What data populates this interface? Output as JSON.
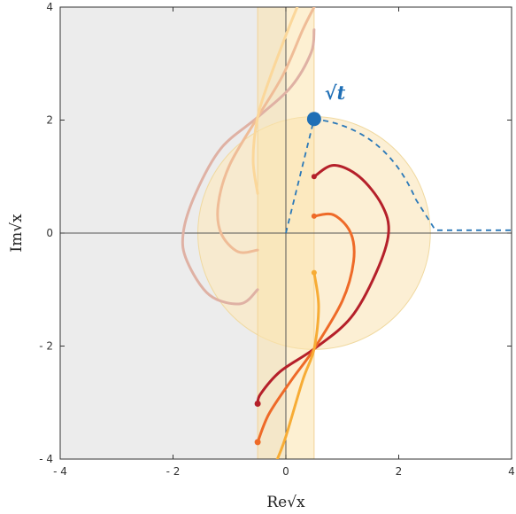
{
  "chart_data": {
    "type": "line",
    "xlabel": "Re√x",
    "ylabel": "Im√x",
    "xlim": [
      -4,
      4
    ],
    "ylim": [
      -4,
      4
    ],
    "x_ticks": [
      {
        "value": -4,
        "label": "- 4"
      },
      {
        "value": -2,
        "label": "- 2"
      },
      {
        "value": 0,
        "label": "0"
      },
      {
        "value": 2,
        "label": "2"
      },
      {
        "value": 4,
        "label": "4"
      }
    ],
    "y_ticks": [
      {
        "value": 4,
        "label": "4"
      },
      {
        "value": 2,
        "label": "2"
      },
      {
        "value": 0,
        "label": "0"
      },
      {
        "value": -2,
        "label": "- 2"
      },
      {
        "value": -4,
        "label": "- 4"
      }
    ],
    "grid": false,
    "regions": {
      "left_halfplane": {
        "x_max": 0,
        "color": "#ececec"
      },
      "disk": {
        "center": [
          0.5,
          0
        ],
        "radius": 2.06,
        "color": "#fbe9c6"
      },
      "strips": [
        {
          "x_min": -0.5,
          "x_max": 0,
          "color": "#f4dca6"
        },
        {
          "x_min": 0,
          "x_max": 0.5,
          "color": "#efe6cc"
        },
        {
          "x_min": 0.5,
          "x_max": 0.5,
          "color": "#fdefc8"
        }
      ],
      "strip_extent": [
        -0.5,
        0.5
      ]
    },
    "marker": {
      "label": "√t",
      "x": 0.5,
      "y": 2.02,
      "color": "#1f6fb6"
    },
    "contour": {
      "color": "#2a78b8",
      "points": [
        [
          0,
          0
        ],
        [
          0.5,
          2.02
        ],
        [
          1.5,
          1.5
        ],
        [
          2.3,
          0.6
        ],
        [
          2.65,
          0.05
        ],
        [
          4,
          0.05
        ]
      ]
    },
    "series": [
      {
        "color": "#b5202a",
        "points": [
          [
            0.5,
            1.0
          ],
          [
            0.85,
            1.2
          ],
          [
            1.3,
            1.0
          ],
          [
            1.7,
            0.5
          ],
          [
            1.82,
            0.0
          ],
          [
            1.6,
            -0.7
          ],
          [
            1.15,
            -1.5
          ],
          [
            0.5,
            -2.05
          ],
          [
            -0.1,
            -2.45
          ],
          [
            -0.45,
            -2.85
          ],
          [
            -0.5,
            -3.02
          ]
        ]
      },
      {
        "color": "#ee6a28",
        "points": [
          [
            0.5,
            0.3
          ],
          [
            0.85,
            0.32
          ],
          [
            1.15,
            0.0
          ],
          [
            1.2,
            -0.5
          ],
          [
            1.0,
            -1.2
          ],
          [
            0.5,
            -2.05
          ],
          [
            0.1,
            -2.6
          ],
          [
            -0.3,
            -3.2
          ],
          [
            -0.5,
            -3.7
          ]
        ]
      },
      {
        "color": "#f7ac35",
        "points": [
          [
            0.5,
            -0.7
          ],
          [
            0.58,
            -1.3
          ],
          [
            0.5,
            -2.05
          ],
          [
            0.3,
            -2.6
          ],
          [
            0.0,
            -3.6
          ],
          [
            -0.15,
            -4.0
          ]
        ]
      },
      {
        "color": "#dfb1a4",
        "points": [
          [
            -0.5,
            -1.0
          ],
          [
            -0.8,
            -1.25
          ],
          [
            -1.35,
            -1.1
          ],
          [
            -1.75,
            -0.5
          ],
          [
            -1.82,
            0.0
          ],
          [
            -1.6,
            0.7
          ],
          [
            -1.15,
            1.5
          ],
          [
            -0.5,
            2.05
          ],
          [
            0.1,
            2.6
          ],
          [
            0.45,
            3.2
          ],
          [
            0.5,
            3.6
          ]
        ]
      },
      {
        "color": "#efbc97",
        "points": [
          [
            -0.5,
            -0.3
          ],
          [
            -0.85,
            -0.33
          ],
          [
            -1.15,
            0.0
          ],
          [
            -1.2,
            0.5
          ],
          [
            -1.0,
            1.2
          ],
          [
            -0.5,
            2.05
          ],
          [
            -0.05,
            2.8
          ],
          [
            0.3,
            3.6
          ],
          [
            0.5,
            4.0
          ]
        ]
      },
      {
        "color": "#fbd79a",
        "points": [
          [
            -0.5,
            0.7
          ],
          [
            -0.58,
            1.3
          ],
          [
            -0.5,
            2.05
          ],
          [
            -0.3,
            2.7
          ],
          [
            0.0,
            3.5
          ],
          [
            0.2,
            4.0
          ]
        ]
      }
    ]
  }
}
